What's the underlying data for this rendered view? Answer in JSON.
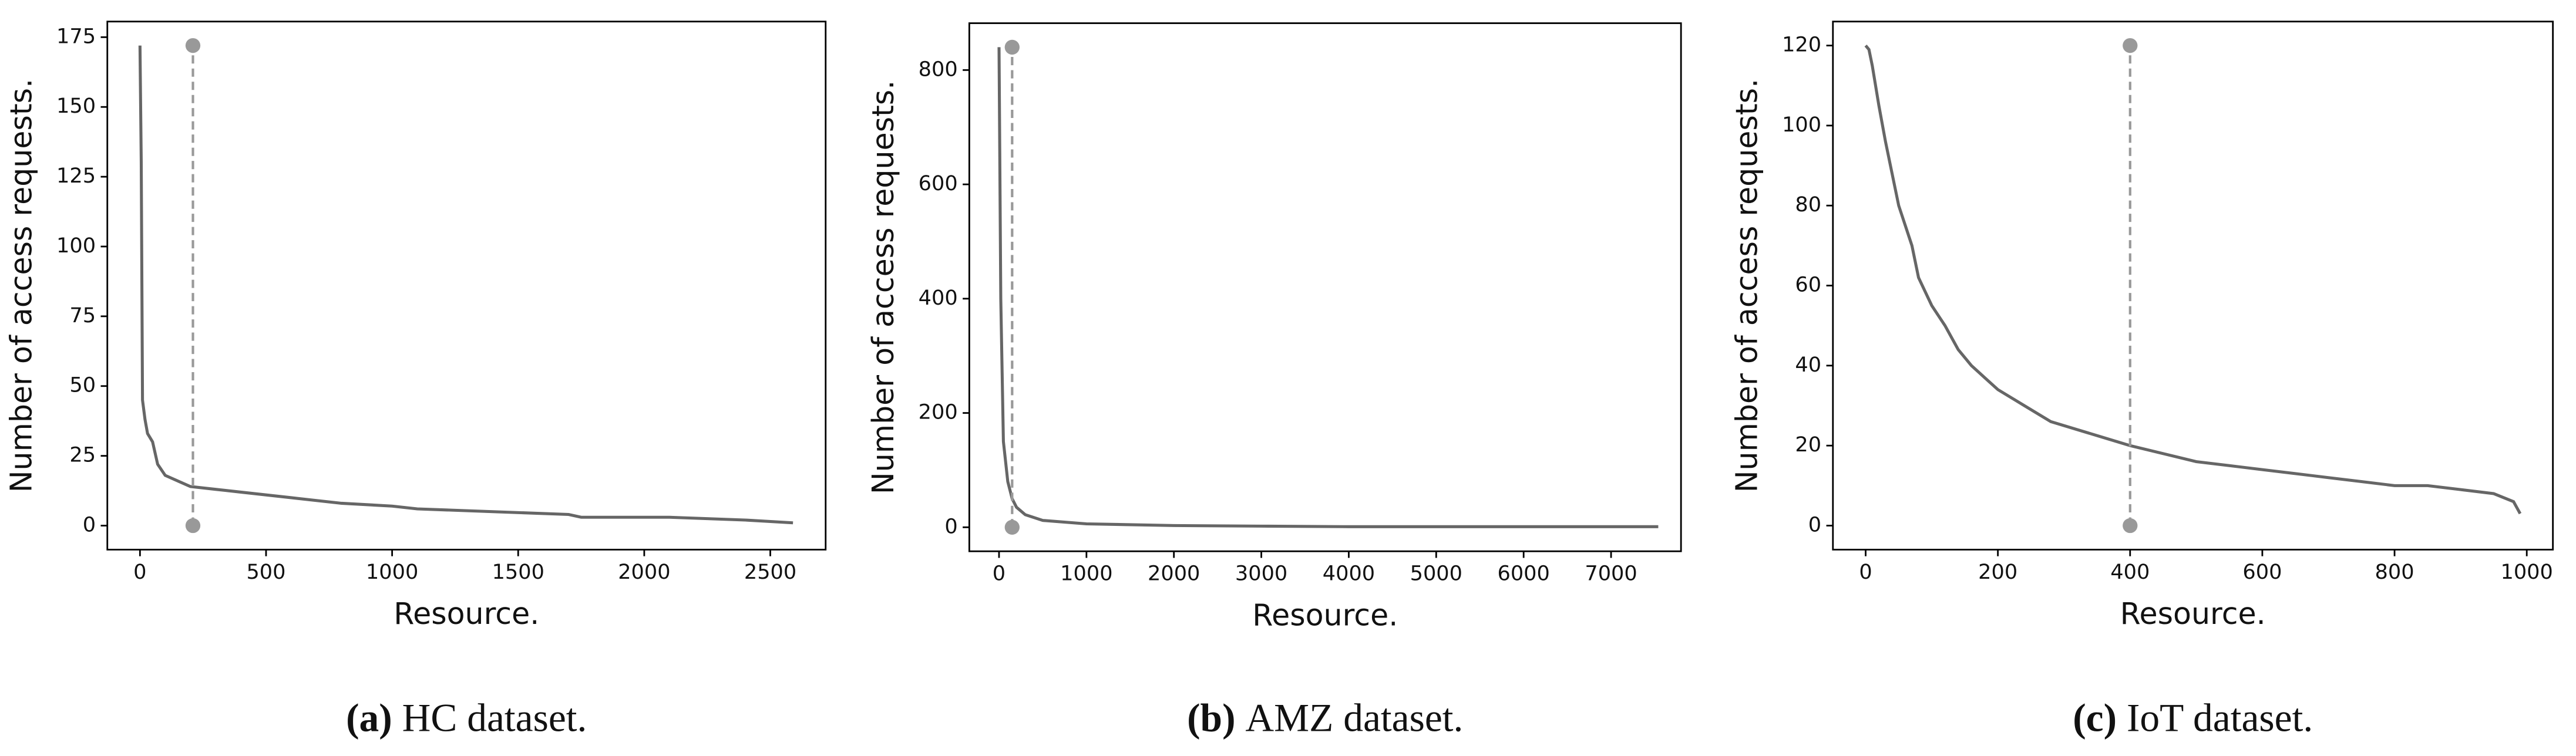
{
  "chart_data": [
    {
      "type": "line",
      "xlabel": "Resource.",
      "ylabel": "Number of access requests.",
      "caption_label": "(a)",
      "caption": "HC dataset.",
      "xlim": [
        -129.5,
        2719.5
      ],
      "xticks": [
        0,
        500,
        1000,
        1500,
        2000,
        2500
      ],
      "ylim": [
        -8.6,
        180.6
      ],
      "yticks": [
        0,
        25,
        50,
        75,
        100,
        125,
        150,
        175
      ],
      "series": [
        {
          "color": "#666666",
          "x": [
            0,
            5,
            10,
            20,
            30,
            50,
            70,
            100,
            150,
            200,
            300,
            400,
            500,
            600,
            700,
            800,
            1000,
            1100,
            1400,
            1700,
            1750,
            2100,
            2400,
            2590
          ],
          "values": [
            172,
            130,
            45,
            38,
            33,
            30,
            22,
            18,
            16,
            14,
            13,
            12,
            11,
            10,
            9,
            8,
            7,
            6,
            5,
            4,
            3,
            3,
            2,
            1
          ]
        },
        {
          "color": "#999999",
          "dashed": true,
          "markers": true,
          "x": [
            210,
            210
          ],
          "values": [
            0,
            172
          ]
        }
      ]
    },
    {
      "type": "line",
      "xlabel": "Resource.",
      "ylabel": "Number of access requests.",
      "caption_label": "(b)",
      "caption": "AMZ dataset.",
      "xlim": [
        -340,
        7800
      ],
      "xticks": [
        0,
        1000,
        2000,
        3000,
        4000,
        5000,
        6000,
        7000
      ],
      "ylim": [
        -42,
        882
      ],
      "yticks": [
        0,
        200,
        400,
        600,
        800
      ],
      "series": [
        {
          "color": "#666666",
          "x": [
            0,
            20,
            50,
            100,
            150,
            200,
            300,
            500,
            1000,
            2000,
            3000,
            4000,
            5000,
            6000,
            7000,
            7540
          ],
          "values": [
            840,
            400,
            150,
            80,
            50,
            35,
            22,
            12,
            6,
            3,
            2,
            1,
            1,
            1,
            1,
            1
          ]
        },
        {
          "color": "#999999",
          "dashed": true,
          "markers": true,
          "x": [
            150,
            150
          ],
          "values": [
            0,
            840
          ]
        }
      ]
    },
    {
      "type": "line",
      "xlabel": "Resource.",
      "ylabel": "Number of access requests.",
      "caption_label": "(c)",
      "caption": "IoT dataset.",
      "xlim": [
        -49.5,
        1039.5
      ],
      "xticks": [
        0,
        200,
        400,
        600,
        800,
        1000
      ],
      "ylim": [
        -6,
        126
      ],
      "yticks": [
        0,
        20,
        40,
        60,
        80,
        100,
        120
      ],
      "series": [
        {
          "color": "#666666",
          "x": [
            0,
            5,
            10,
            20,
            30,
            40,
            50,
            60,
            70,
            80,
            100,
            120,
            140,
            160,
            180,
            200,
            240,
            280,
            320,
            360,
            400,
            450,
            500,
            550,
            600,
            650,
            700,
            750,
            800,
            850,
            900,
            950,
            980,
            990
          ],
          "values": [
            120,
            119,
            115,
            105,
            96,
            88,
            80,
            75,
            70,
            62,
            55,
            50,
            44,
            40,
            37,
            34,
            30,
            26,
            24,
            22,
            20,
            18,
            16,
            15,
            14,
            13,
            12,
            11,
            10,
            10,
            9,
            8,
            6,
            3
          ]
        },
        {
          "color": "#999999",
          "dashed": true,
          "markers": true,
          "x": [
            400,
            400
          ],
          "values": [
            0,
            120
          ]
        }
      ]
    }
  ]
}
